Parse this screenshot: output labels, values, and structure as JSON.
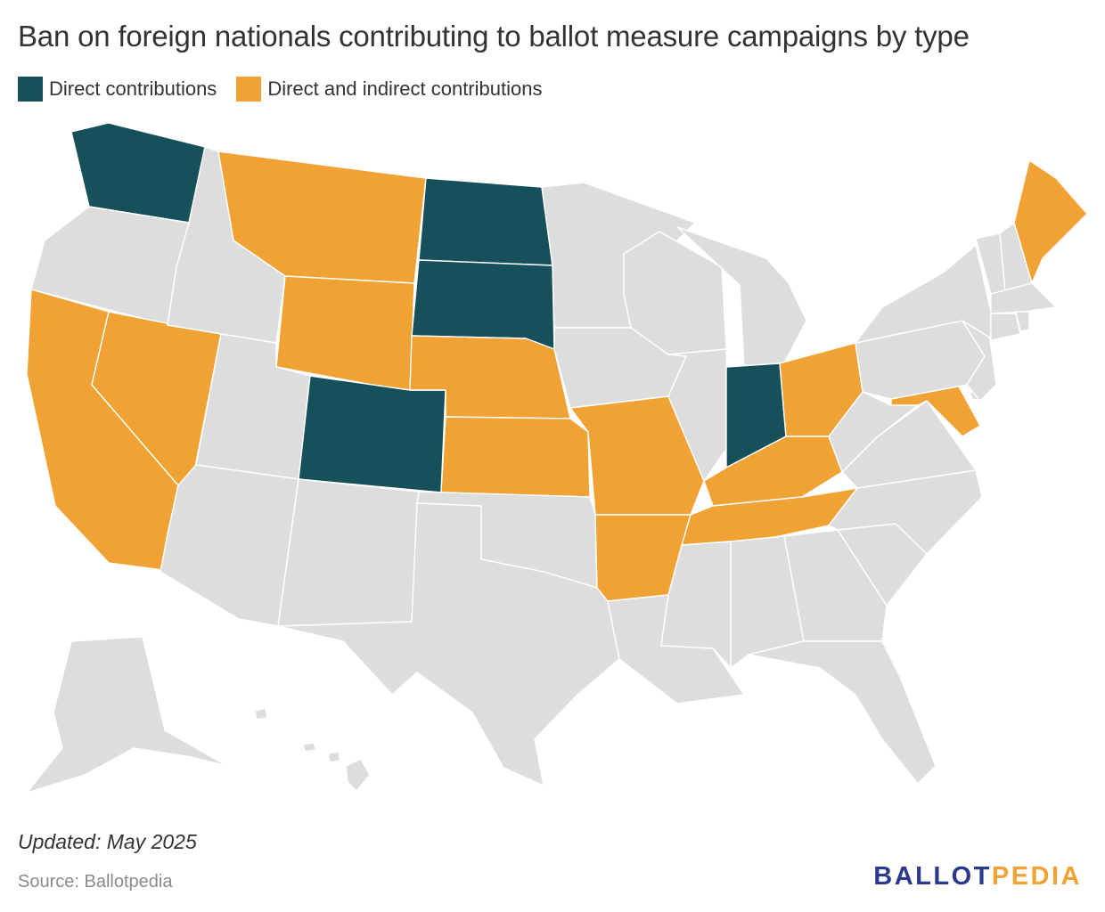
{
  "title": "Ban on foreign nationals contributing to ballot measure campaigns by type",
  "legend": [
    {
      "label": "Direct contributions",
      "color": "#16505a"
    },
    {
      "label": "Direct and indirect contributions",
      "color": "#f0a334"
    }
  ],
  "colors": {
    "direct": "#16505a",
    "direct_and_indirect": "#f0a334",
    "none": "#dddddd"
  },
  "states": {
    "WA": "direct",
    "ND": "direct",
    "SD": "direct",
    "CO": "direct",
    "IN": "direct",
    "MT": "direct_and_indirect",
    "WY": "direct_and_indirect",
    "NE": "direct_and_indirect",
    "KS": "direct_and_indirect",
    "MO": "direct_and_indirect",
    "AR": "direct_and_indirect",
    "CA": "direct_and_indirect",
    "NV": "direct_and_indirect",
    "OH": "direct_and_indirect",
    "KY": "direct_and_indirect",
    "TN": "direct_and_indirect",
    "MD": "direct_and_indirect",
    "ME": "direct_and_indirect",
    "OR": "none",
    "ID": "none",
    "UT": "none",
    "AZ": "none",
    "NM": "none",
    "TX": "none",
    "OK": "none",
    "MN": "none",
    "IA": "none",
    "WI": "none",
    "IL": "none",
    "MI": "none",
    "LA": "none",
    "MS": "none",
    "AL": "none",
    "GA": "none",
    "FL": "none",
    "SC": "none",
    "NC": "none",
    "VA": "none",
    "WV": "none",
    "PA": "none",
    "NY": "none",
    "NJ": "none",
    "DE": "none",
    "CT": "none",
    "RI": "none",
    "MA": "none",
    "VT": "none",
    "NH": "none",
    "AK": "none",
    "HI": "none"
  },
  "footer": {
    "updated": "Updated: May 2025",
    "source": "Source: Ballotpedia",
    "logo_part1": "BALLOT",
    "logo_part2": "PEDIA"
  }
}
